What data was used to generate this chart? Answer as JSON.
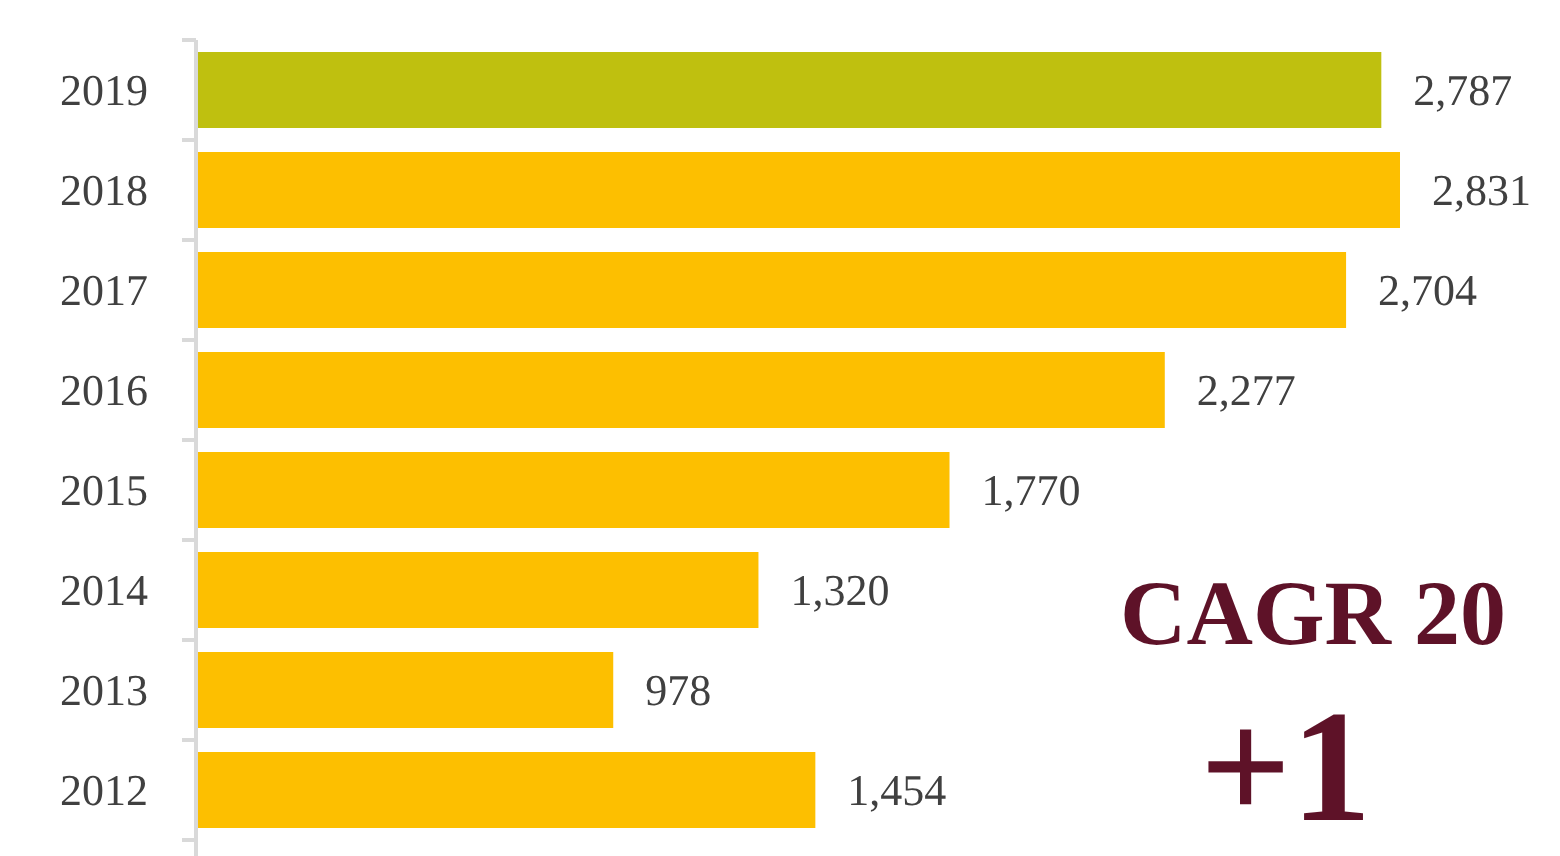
{
  "chart_data": {
    "type": "bar",
    "orientation": "horizontal",
    "categories": [
      "2019",
      "2018",
      "2017",
      "2016",
      "2015",
      "2014",
      "2013",
      "2012"
    ],
    "values": [
      2787,
      2831,
      2704,
      2277,
      1770,
      1320,
      978,
      1454
    ],
    "colors": [
      "#bfc00f",
      "#fdbf00",
      "#fdbf00",
      "#fdbf00",
      "#fdbf00",
      "#fdbf00",
      "#fdbf00",
      "#fdbf00"
    ],
    "value_labels": [
      "2,787",
      "2,831",
      "2,704",
      "2,277",
      "1,770",
      "1,320",
      "978",
      "1,454"
    ],
    "annotations": [
      "CAGR 20",
      "+1"
    ]
  }
}
